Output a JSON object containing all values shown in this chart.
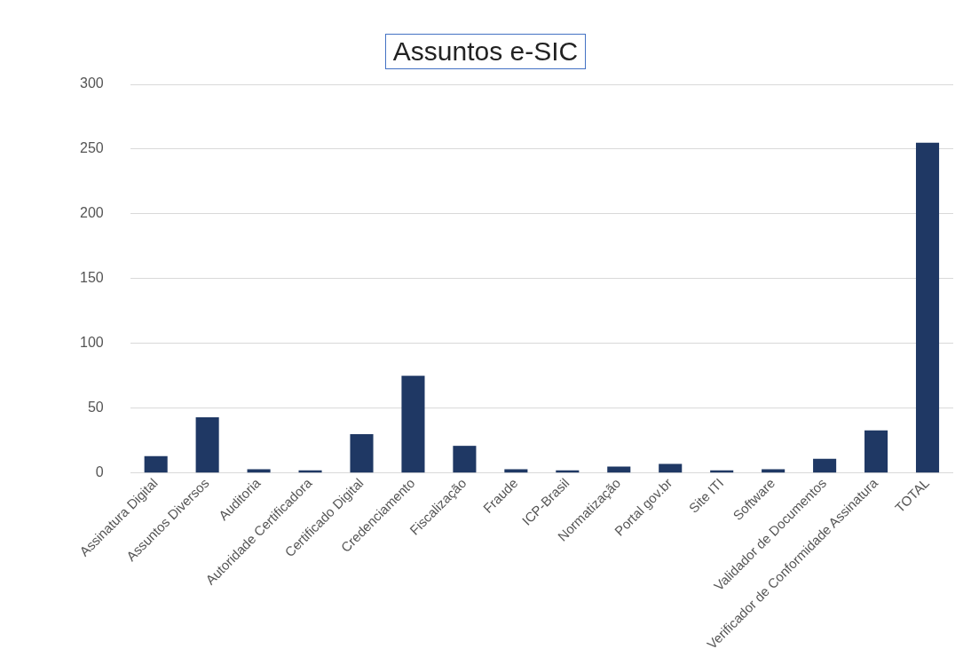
{
  "chart_data": {
    "type": "bar",
    "title": "Assuntos e-SIC",
    "categories": [
      "Assinatura Digital",
      "Assuntos Diversos",
      "Auditoria",
      "Autoridade Certificadora",
      "Certificado Digital",
      "Credenciamento",
      "Fiscalização",
      "Fraude",
      "ICP-Brasil",
      "Normatização",
      "Portal gov.br",
      "Site ITI",
      "Software",
      "Validador de Documentos",
      "Verificador de Conformidade Assinatura",
      "TOTAL"
    ],
    "values": [
      13,
      43,
      3,
      2,
      30,
      75,
      21,
      3,
      2,
      5,
      7,
      2,
      3,
      11,
      33,
      255
    ],
    "color": "#1f3864",
    "ylim": [
      0,
      300
    ],
    "yticks": [
      0,
      50,
      100,
      150,
      200,
      250,
      300
    ],
    "grid": "y"
  }
}
